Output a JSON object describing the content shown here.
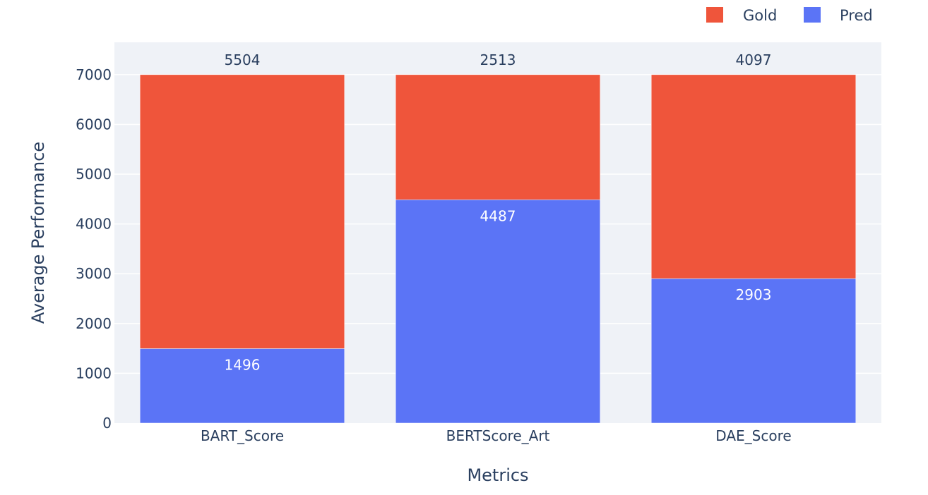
{
  "chart_data": {
    "type": "bar",
    "stacked": true,
    "categories": [
      "BART_Score",
      "BERTScore_Art",
      "DAE_Score"
    ],
    "series": [
      {
        "name": "Pred",
        "values": [
          1496,
          4487,
          2903
        ],
        "color": "#5b74f6",
        "label_position": "inside"
      },
      {
        "name": "Gold",
        "values": [
          5504,
          2513,
          4097
        ],
        "color": "#ef553b",
        "label_position": "outside"
      }
    ],
    "legend_order": [
      "Gold",
      "Pred"
    ],
    "xlabel": "Metrics",
    "ylabel": "Average Performance",
    "ylim": [
      0,
      7650
    ],
    "yticks": [
      0,
      1000,
      2000,
      3000,
      4000,
      5000,
      6000,
      7000
    ],
    "grid": true,
    "legend_placement": "top-right",
    "plot_background": "#eff2f7",
    "grid_color": "#ffffff"
  }
}
